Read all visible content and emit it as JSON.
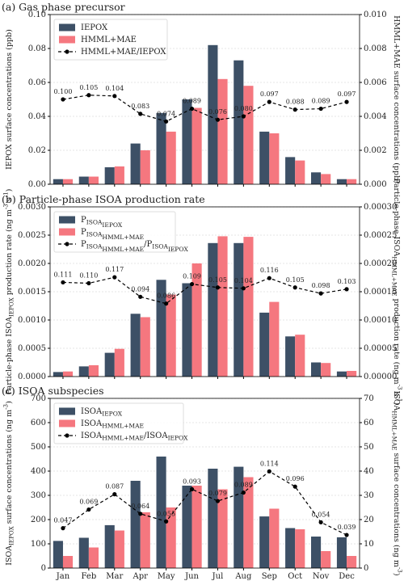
{
  "chart_data": [
    {
      "type": "bar",
      "title": "(a) Gas phase precursor",
      "ylabel": "IEPOX surface concentrations (ppb)",
      "y2label": "HMML+MAE surface concentrations (ppb)",
      "ylim": [
        0,
        0.1
      ],
      "yticks": [
        {
          "value": 0,
          "label": "0.00"
        },
        0.02,
        0.04,
        0.06,
        0.08,
        {
          "value": 0.1,
          "label": "0.10"
        }
      ],
      "y2lim": [
        0,
        0.01
      ],
      "y2ticks": [
        {
          "value": 0,
          "label": "0.000"
        },
        0.002,
        0.004,
        0.006,
        0.008,
        {
          "value": 0.01,
          "label": "0.010"
        }
      ],
      "y3lim": [
        0,
        0.2
      ],
      "grid": true,
      "legend": "upper left",
      "series": [
        {
          "name": "IEPOX",
          "color": "#3d5066",
          "values": [
            0.003,
            0.0045,
            0.01,
            0.024,
            0.042,
            0.05,
            0.082,
            0.073,
            0.031,
            0.016,
            0.007,
            0.003
          ]
        },
        {
          "name": "HMML+MAE",
          "color": "#f5777f",
          "axis": "y2",
          "values": [
            0.0003,
            0.00045,
            0.00105,
            0.002,
            0.0031,
            0.0045,
            0.0062,
            0.0058,
            0.003,
            0.0014,
            0.0006,
            0.0003
          ]
        },
        {
          "name": "HMML+MAE/IEPOX",
          "type": "line",
          "color": "#000000",
          "axis": "y3",
          "linestyle": "dashed",
          "values": [
            0.1,
            0.105,
            0.104,
            0.083,
            0.074,
            0.089,
            0.076,
            0.08,
            0.097,
            0.088,
            0.089,
            0.097
          ],
          "value_labels": [
            "0.100",
            "0.105",
            "0.104",
            "0.083",
            "0.074",
            "0.089",
            "0.076",
            "0.080",
            "0.097",
            "0.088",
            "0.089",
            "0.097"
          ]
        }
      ]
    },
    {
      "type": "bar",
      "title": "(b) Particle-phase ISOA production rate",
      "ylabel": "Particle-phase ISOA_{IEPOX} production rate (ng m^{-3} s^{-1})",
      "y2label": "Particle-phase ISOA_{HMML+MAE} production rate (ng m^{-3} s^{-1})",
      "ylim": [
        0,
        0.003
      ],
      "yticks": [
        {
          "value": 0,
          "label": "0.0000"
        },
        0.0005,
        {
          "value": 0.001,
          "label": "0.0010"
        },
        0.0015,
        {
          "value": 0.002,
          "label": "0.0020"
        },
        0.0025,
        {
          "value": 0.003,
          "label": "0.0030"
        }
      ],
      "y2lim": [
        0,
        0.0003
      ],
      "y2ticks": [
        {
          "value": 0,
          "label": "0.00000"
        },
        5e-05,
        {
          "value": 0.0001,
          "label": "0.00010"
        },
        0.00015,
        {
          "value": 0.0002,
          "label": "0.00020"
        },
        0.00025,
        {
          "value": 0.0003,
          "label": "0.00030"
        }
      ],
      "y3lim": [
        0,
        0.2
      ],
      "grid": true,
      "legend": "upper left",
      "series": [
        {
          "name": "P_{ISOA_{IEPOX}}",
          "color": "#3d5066",
          "values": [
            8e-05,
            0.00018,
            0.00042,
            0.00111,
            0.00171,
            0.00165,
            0.00236,
            0.00236,
            0.00113,
            0.00071,
            0.00025,
            9e-05
          ]
        },
        {
          "name": "P_{ISOA_{HMML+MAE}}",
          "color": "#f5777f",
          "axis": "y2",
          "values": [
            9e-06,
            2e-05,
            4.9e-05,
            0.000105,
            0.000145,
            0.0002,
            0.000248,
            0.000247,
            0.000132,
            7.4e-05,
            2.4e-05,
            1e-05
          ]
        },
        {
          "name": "P_{ISOA_{HMML+MAE}}/P_{ISOA_{IEPOX}}",
          "type": "line",
          "color": "#000000",
          "axis": "y3",
          "linestyle": "dashed",
          "values": [
            0.111,
            0.11,
            0.117,
            0.094,
            0.086,
            0.109,
            0.105,
            0.104,
            0.116,
            0.105,
            0.098,
            0.103
          ],
          "value_labels": [
            "0.111",
            "0.110",
            "0.117",
            "0.094",
            "0.086",
            "0.109",
            "0.105",
            "0.104",
            "0.116",
            "0.105",
            "0.098",
            "0.103"
          ]
        }
      ]
    },
    {
      "type": "bar",
      "title": "(c) ISOA subspecies",
      "ylabel": "ISOA_{IEPOX} surface concentrations (ng m^{-3})",
      "y2label": "ISOA_{HMML+MAE} surface concentrations (ng m^{-3})",
      "categories": [
        "Jan",
        "Feb",
        "Mar",
        "Apr",
        "May",
        "Jun",
        "Jul",
        "Aug",
        "Sep",
        "Oct",
        "Nov",
        "Dec"
      ],
      "ylim": [
        0,
        700
      ],
      "yticks": [
        0,
        100,
        200,
        300,
        400,
        500,
        600,
        700
      ],
      "y2lim": [
        0,
        70
      ],
      "y2ticks": [
        0,
        10,
        20,
        30,
        40,
        50,
        60,
        70
      ],
      "y3lim": [
        0,
        0.2
      ],
      "grid": true,
      "legend": "upper left",
      "series": [
        {
          "name": "ISOA_{IEPOX}",
          "color": "#3d5066",
          "values": [
            112,
            125,
            177,
            360,
            460,
            340,
            410,
            418,
            213,
            165,
            130,
            127
          ]
        },
        {
          "name": "ISOA_{HMML+MAE}",
          "color": "#f5777f",
          "axis": "y2",
          "values": [
            5,
            8.5,
            15.5,
            23,
            25,
            34,
            32.5,
            37.5,
            24.5,
            16,
            7,
            5
          ]
        },
        {
          "name": "ISOA_{HMML+MAE}/ISOA_{IEPOX}",
          "type": "line",
          "color": "#000000",
          "axis": "y3",
          "linestyle": "dashed",
          "values": [
            0.047,
            0.069,
            0.087,
            0.064,
            0.055,
            0.093,
            0.079,
            0.089,
            0.114,
            0.096,
            0.054,
            0.039
          ],
          "value_labels": [
            "0.047",
            "0.069",
            "0.087",
            "0.064",
            "0.055",
            "0.093",
            "0.079",
            "0.089",
            "0.114",
            "0.096",
            "0.054",
            "0.039"
          ]
        }
      ]
    }
  ]
}
